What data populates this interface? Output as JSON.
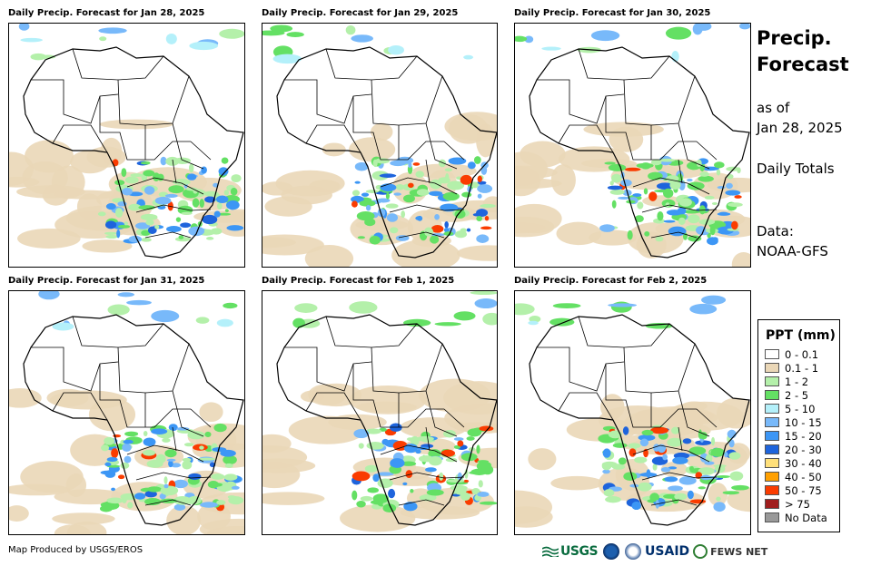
{
  "panels": [
    {
      "title": "Daily Precip. Forecast for Jan 28, 2025"
    },
    {
      "title": "Daily Precip. Forecast for Jan 29, 2025"
    },
    {
      "title": "Daily Precip. Forecast for Jan 30, 2025"
    },
    {
      "title": "Daily Precip. Forecast for Jan 31, 2025"
    },
    {
      "title": "Daily Precip. Forecast for Feb 1, 2025"
    },
    {
      "title": "Daily Precip. Forecast for Feb 2, 2025"
    }
  ],
  "side": {
    "title_line1": "Precip.",
    "title_line2": "Forecast",
    "asof_line1": "as of",
    "asof_line2": "Jan 28, 2025",
    "totals": "Daily Totals",
    "data_line1": "Data:",
    "data_line2": "NOAA-GFS"
  },
  "legend": {
    "title": "PPT (mm)",
    "items": [
      {
        "label": "0 - 0.1",
        "color": "#ffffff"
      },
      {
        "label": "0.1 - 1",
        "color": "#ead7b7"
      },
      {
        "label": "1 - 2",
        "color": "#b4f0aa"
      },
      {
        "label": "2 - 5",
        "color": "#64e064"
      },
      {
        "label": "5 - 10",
        "color": "#b4f0fa"
      },
      {
        "label": "10 - 15",
        "color": "#78b9fa"
      },
      {
        "label": "15 - 20",
        "color": "#3c96f5"
      },
      {
        "label": "20 - 30",
        "color": "#1e64dc"
      },
      {
        "label": "30 - 40",
        "color": "#ffe07a"
      },
      {
        "label": "40 - 50",
        "color": "#ffa000"
      },
      {
        "label": "50 - 75",
        "color": "#fa3c00"
      },
      {
        "label": "> 75",
        "color": "#a01e1e"
      },
      {
        "label": "No Data",
        "color": "#999999"
      }
    ]
  },
  "footer": {
    "credit": "Map Produced by USGS/EROS",
    "logo_usgs": "USGS",
    "logo_usaid": "USAID",
    "logo_fews": "FEWS NET"
  }
}
